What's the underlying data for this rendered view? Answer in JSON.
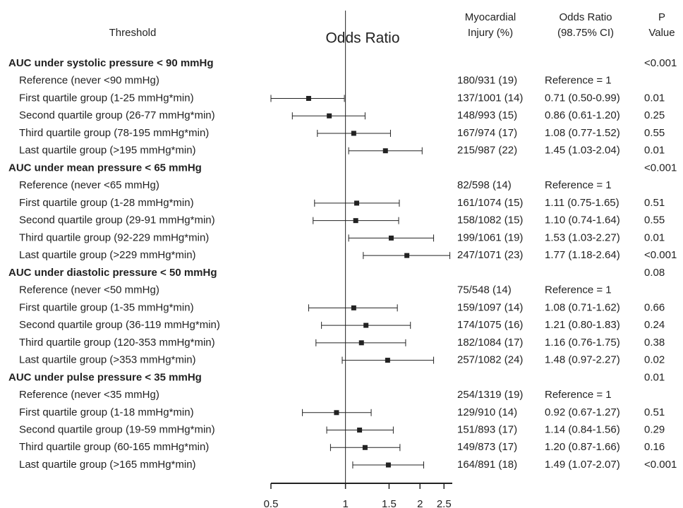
{
  "chart_data": {
    "type": "forest",
    "title": "Odds Ratio",
    "column_headers": {
      "threshold": "Threshold",
      "injury": [
        "Myocardial",
        "Injury (%)"
      ],
      "odds_ratio": [
        "Odds Ratio",
        "(98.75% CI)"
      ],
      "p": [
        "P",
        "Value"
      ]
    },
    "log_scale": true,
    "xlim": [
      0.5,
      2.7
    ],
    "xticks": [
      0.5,
      1,
      1.5,
      2,
      2.5
    ],
    "reference_line": 1,
    "color": "#222222",
    "groups": [
      {
        "title": "AUC under systolic pressure < 90 mmHg",
        "p": "<0.001",
        "rows": [
          {
            "label": "Reference (never <90 mmHg)",
            "injury": "180/931 (19)",
            "or_label": "Reference = 1"
          },
          {
            "label": "First quartile group (1-25 mmHg*min)",
            "injury": "137/1001 (14)",
            "odds_ratio": 0.71,
            "ci": [
              0.5,
              0.99
            ],
            "or_label": "0.71 (0.50-0.99)",
            "p": "0.01"
          },
          {
            "label": "Second quartile group (26-77 mmHg*min)",
            "injury": "148/993 (15)",
            "odds_ratio": 0.86,
            "ci": [
              0.61,
              1.2
            ],
            "or_label": "0.86 (0.61-1.20)",
            "p": "0.25"
          },
          {
            "label": "Third quartile group (78-195 mmHg*min)",
            "injury": "167/974 (17)",
            "odds_ratio": 1.08,
            "ci": [
              0.77,
              1.52
            ],
            "or_label": "1.08 (0.77-1.52)",
            "p": "0.55"
          },
          {
            "label": "Last quartile group (>195 mmHg*min)",
            "injury": "215/987 (22)",
            "odds_ratio": 1.45,
            "ci": [
              1.03,
              2.04
            ],
            "or_label": "1.45 (1.03-2.04)",
            "p": "0.01"
          }
        ]
      },
      {
        "title": "AUC under mean pressure < 65 mmHg",
        "p": "<0.001",
        "rows": [
          {
            "label": "Reference (never <65 mmHg)",
            "injury": "82/598 (14)",
            "or_label": "Reference = 1"
          },
          {
            "label": "First quartile group (1-28 mmHg*min)",
            "injury": "161/1074 (15)",
            "odds_ratio": 1.11,
            "ci": [
              0.75,
              1.65
            ],
            "or_label": "1.11 (0.75-1.65)",
            "p": "0.51"
          },
          {
            "label": "Second quartile group (29-91 mmHg*min)",
            "injury": "158/1082 (15)",
            "odds_ratio": 1.1,
            "ci": [
              0.74,
              1.64
            ],
            "or_label": "1.10 (0.74-1.64)",
            "p": "0.55"
          },
          {
            "label": "Third quartile group (92-229 mmHg*min)",
            "injury": "199/1061 (19)",
            "odds_ratio": 1.53,
            "ci": [
              1.03,
              2.27
            ],
            "or_label": "1.53 (1.03-2.27)",
            "p": "0.01"
          },
          {
            "label": "Last quartile group (>229 mmHg*min)",
            "injury": "247/1071 (23)",
            "odds_ratio": 1.77,
            "ci": [
              1.18,
              2.64
            ],
            "or_label": "1.77 (1.18-2.64)",
            "p": "<0.001"
          }
        ]
      },
      {
        "title": "AUC under diastolic pressure < 50 mmHg",
        "p": "0.08",
        "rows": [
          {
            "label": "Reference (never <50 mmHg)",
            "injury": "75/548 (14)",
            "or_label": "Reference = 1"
          },
          {
            "label": "First quartile group (1-35 mmHg*min)",
            "injury": "159/1097 (14)",
            "odds_ratio": 1.08,
            "ci": [
              0.71,
              1.62
            ],
            "or_label": "1.08 (0.71-1.62)",
            "p": "0.66"
          },
          {
            "label": "Second quartile group (36-119 mmHg*min)",
            "injury": "174/1075 (16)",
            "odds_ratio": 1.21,
            "ci": [
              0.8,
              1.83
            ],
            "or_label": "1.21 (0.80-1.83)",
            "p": "0.24"
          },
          {
            "label": "Third quartile group (120-353 mmHg*min)",
            "injury": "182/1084 (17)",
            "odds_ratio": 1.16,
            "ci": [
              0.76,
              1.75
            ],
            "or_label": "1.16 (0.76-1.75)",
            "p": "0.38"
          },
          {
            "label": "Last quartile group (>353 mmHg*min)",
            "injury": "257/1082 (24)",
            "odds_ratio": 1.48,
            "ci": [
              0.97,
              2.27
            ],
            "or_label": "1.48 (0.97-2.27)",
            "p": "0.02"
          }
        ]
      },
      {
        "title": "AUC under pulse pressure < 35 mmHg",
        "p": "0.01",
        "rows": [
          {
            "label": "Reference (never <35 mmHg)",
            "injury": "254/1319 (19)",
            "or_label": "Reference = 1"
          },
          {
            "label": "First quartile group (1-18 mmHg*min)",
            "injury": "129/910 (14)",
            "odds_ratio": 0.92,
            "ci": [
              0.67,
              1.27
            ],
            "or_label": "0.92 (0.67-1.27)",
            "p": "0.51"
          },
          {
            "label": "Second quartile group (19-59 mmHg*min)",
            "injury": "151/893 (17)",
            "odds_ratio": 1.14,
            "ci": [
              0.84,
              1.56
            ],
            "or_label": "1.14 (0.84-1.56)",
            "p": "0.29"
          },
          {
            "label": "Third quartile group (60-165 mmHg*min)",
            "injury": "149/873 (17)",
            "odds_ratio": 1.2,
            "ci": [
              0.87,
              1.66
            ],
            "or_label": "1.20 (0.87-1.66)",
            "p": "0.16"
          },
          {
            "label": "Last quartile group (>165 mmHg*min)",
            "injury": "164/891 (18)",
            "odds_ratio": 1.49,
            "ci": [
              1.07,
              2.07
            ],
            "or_label": "1.49 (1.07-2.07)",
            "p": "<0.001"
          }
        ]
      }
    ]
  }
}
